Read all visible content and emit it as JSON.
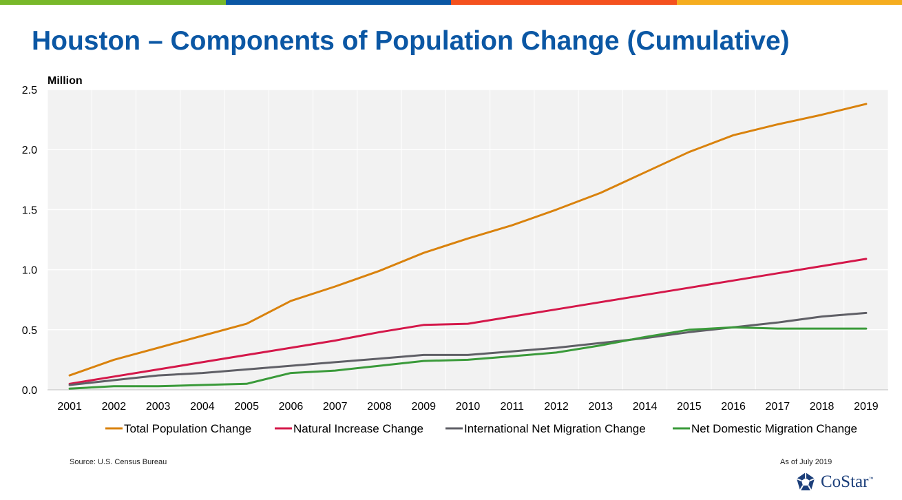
{
  "page": {
    "title": "Houston – Components of Population Change (Cumulative)",
    "source": "Source: U.S. Census Bureau",
    "as_of": "As of July 2019",
    "logo_text": "CoStar",
    "logo_tm": "™",
    "top_bar_colors": [
      "#78b82a",
      "#0b57a4",
      "#f4511e",
      "#f5ad1f"
    ]
  },
  "chart_data": {
    "type": "line",
    "ylabel": "Million",
    "ylim": [
      0,
      2.5
    ],
    "yticks": [
      "0.0",
      "0.5",
      "1.0",
      "1.5",
      "2.0",
      "2.5"
    ],
    "grid": true,
    "legend_position": "bottom",
    "categories": [
      "2001",
      "2002",
      "2003",
      "2004",
      "2005",
      "2006",
      "2007",
      "2008",
      "2009",
      "2010",
      "2011",
      "2012",
      "2013",
      "2014",
      "2015",
      "2016",
      "2017",
      "2018",
      "2019"
    ],
    "series": [
      {
        "name": "Total Population Change",
        "color": "#d9820d",
        "values": [
          0.12,
          0.25,
          0.35,
          0.45,
          0.55,
          0.74,
          0.86,
          0.99,
          1.14,
          1.26,
          1.37,
          1.5,
          1.64,
          1.81,
          1.98,
          2.12,
          2.21,
          2.29,
          2.38
        ]
      },
      {
        "name": "Natural Increase Change",
        "color": "#d4184a",
        "values": [
          0.05,
          0.11,
          0.17,
          0.23,
          0.29,
          0.35,
          0.41,
          0.48,
          0.54,
          0.55,
          0.61,
          0.67,
          0.73,
          0.79,
          0.85,
          0.91,
          0.97,
          1.03,
          1.09
        ]
      },
      {
        "name": "International Net Migration Change",
        "color": "#5f5f66",
        "values": [
          0.04,
          0.08,
          0.12,
          0.14,
          0.17,
          0.2,
          0.23,
          0.26,
          0.29,
          0.29,
          0.32,
          0.35,
          0.39,
          0.43,
          0.48,
          0.52,
          0.56,
          0.61,
          0.64
        ]
      },
      {
        "name": "Net Domestic Migration Change",
        "color": "#3a9a3a",
        "values": [
          0.01,
          0.03,
          0.03,
          0.04,
          0.05,
          0.14,
          0.16,
          0.2,
          0.24,
          0.25,
          0.28,
          0.31,
          0.37,
          0.44,
          0.5,
          0.52,
          0.51,
          0.51,
          0.51
        ]
      }
    ]
  }
}
